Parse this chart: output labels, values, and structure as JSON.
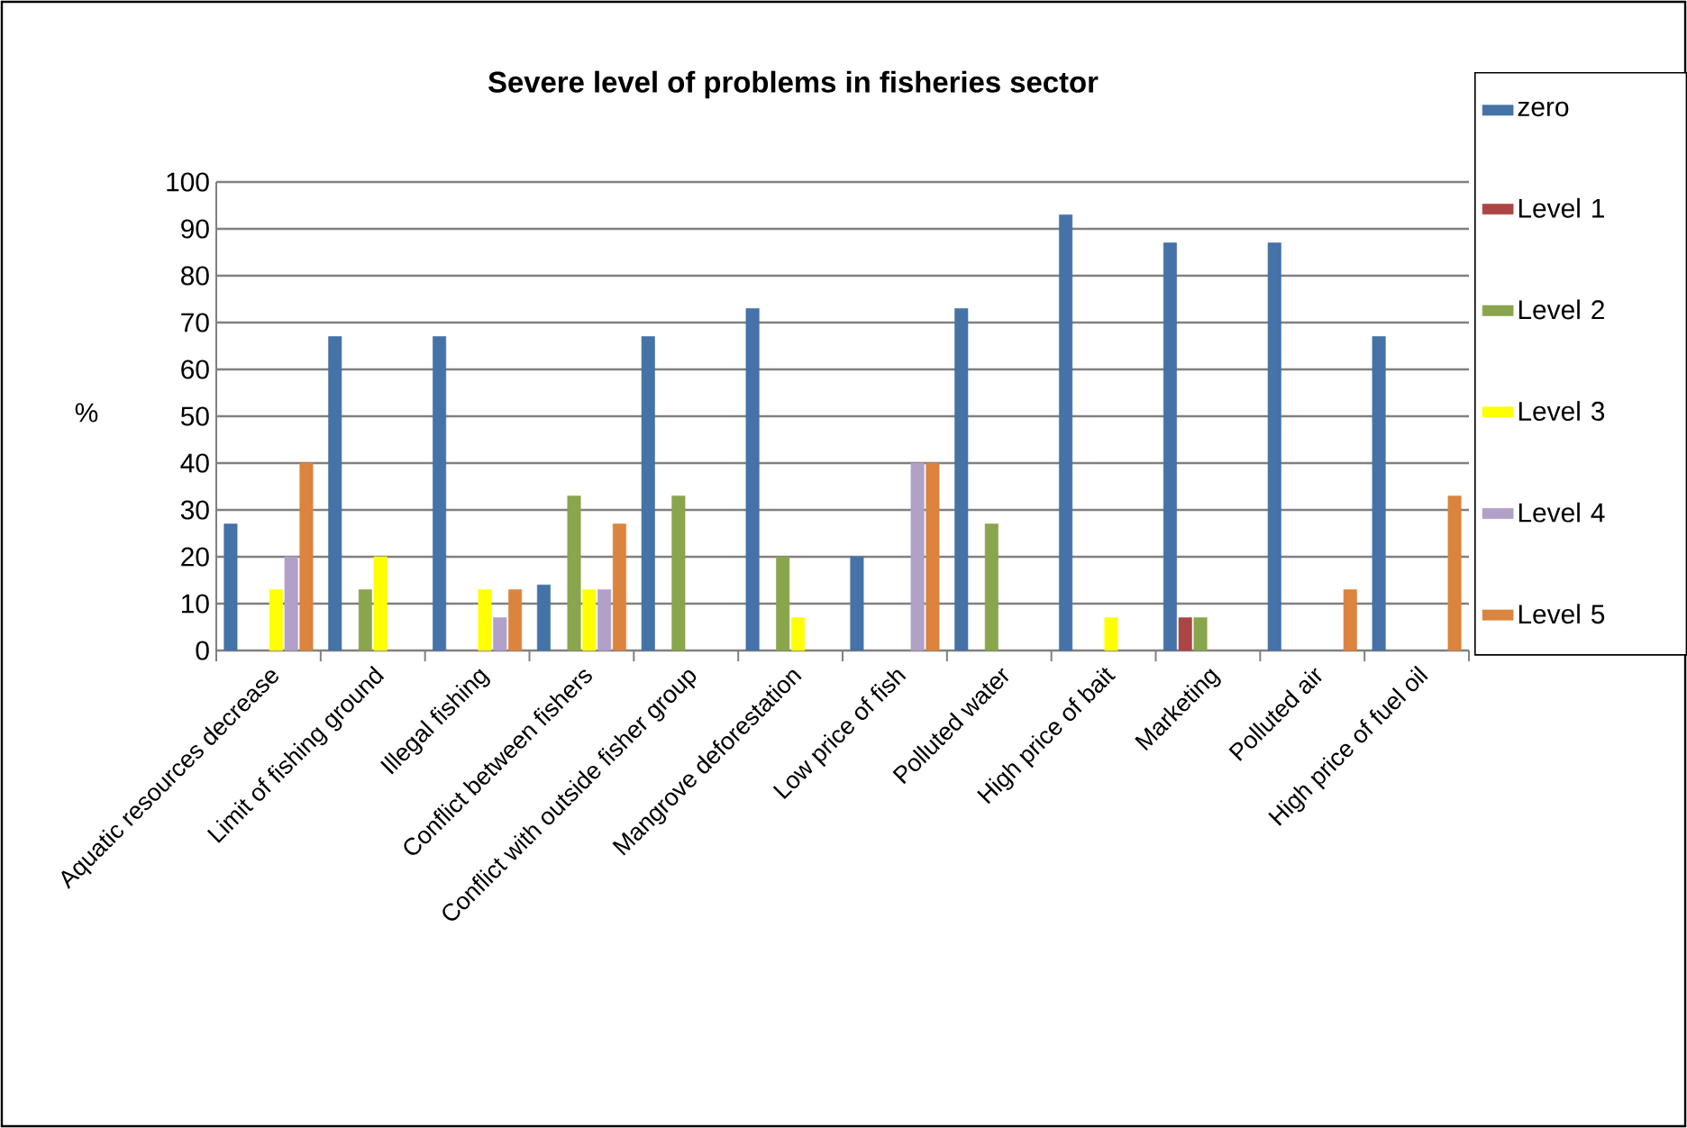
{
  "chart_data": {
    "type": "bar",
    "title": "Severe level of problems in fisheries sector",
    "ylabel": "%",
    "categories": [
      "Aquatic resources decrease",
      "Limit of fishing ground",
      "Illegal fishing",
      "Conflict between fishers",
      "Conflict with outside fisher group",
      "Mangrove deforestation",
      "Low price of fish",
      "Polluted water",
      "High price of bait",
      "Marketing",
      "Polluted air",
      "High price of fuel oil"
    ],
    "series": [
      {
        "name": "zero",
        "color": "#4572a7",
        "values": [
          27,
          67,
          67,
          14,
          67,
          73,
          20,
          73,
          93,
          87,
          87,
          67
        ]
      },
      {
        "name": "Level 1",
        "color": "#aa4643",
        "values": [
          null,
          null,
          null,
          null,
          null,
          null,
          null,
          null,
          null,
          7,
          null,
          null
        ]
      },
      {
        "name": "Level 2",
        "color": "#89a54e",
        "values": [
          null,
          13,
          null,
          33,
          33,
          20,
          null,
          27,
          null,
          7,
          null,
          null
        ]
      },
      {
        "name": "Level 3",
        "color": "#ffff00",
        "values": [
          13,
          20,
          13,
          13,
          null,
          7,
          null,
          null,
          7,
          null,
          null,
          null
        ]
      },
      {
        "name": "Level 4",
        "color": "#b1a0c7",
        "values": [
          20,
          null,
          7,
          13,
          null,
          null,
          40,
          null,
          null,
          null,
          null,
          null
        ]
      },
      {
        "name": "Level 5",
        "color": "#db843d",
        "values": [
          40,
          null,
          13,
          27,
          null,
          null,
          40,
          null,
          null,
          null,
          13,
          33
        ]
      }
    ],
    "ylim": [
      0,
      100
    ],
    "yticks": [
      0,
      10,
      20,
      30,
      40,
      50,
      60,
      70,
      80,
      90,
      100
    ],
    "grid": "y",
    "legend": "right"
  }
}
